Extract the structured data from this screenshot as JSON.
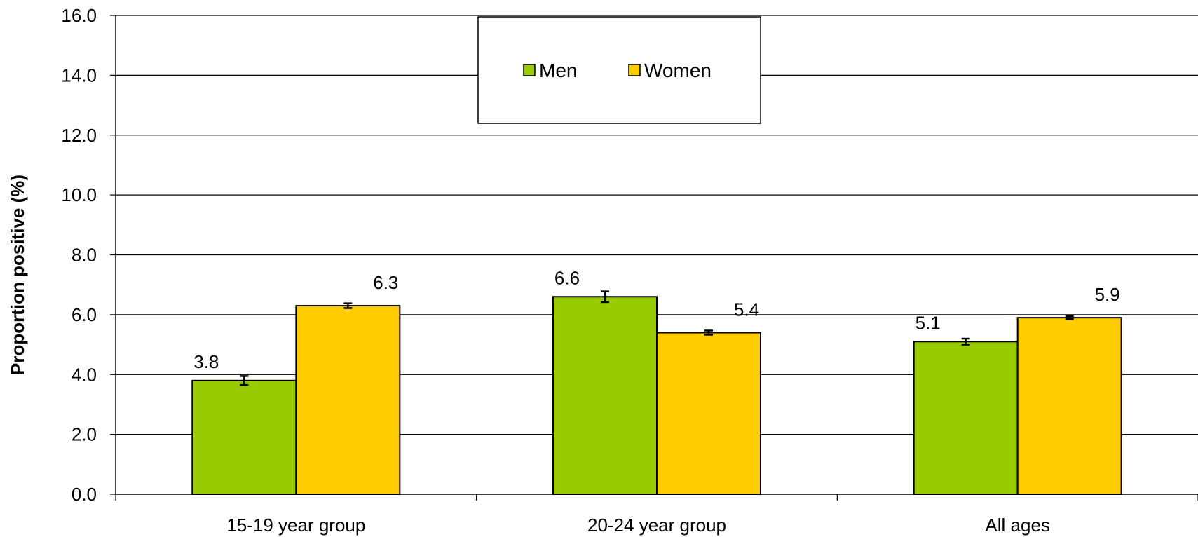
{
  "chart_data": {
    "type": "bar",
    "categories": [
      "15-19 year group",
      "20-24 year group",
      "All ages"
    ],
    "series": [
      {
        "name": "Men",
        "color": "#99cc00",
        "values": [
          3.8,
          6.6,
          5.1
        ],
        "error": [
          0.15,
          0.18,
          0.1
        ]
      },
      {
        "name": "Women",
        "color": "#ffcc00",
        "values": [
          6.3,
          5.4,
          5.9
        ],
        "error": [
          0.08,
          0.07,
          0.05
        ]
      }
    ],
    "value_labels": [
      [
        "3.8",
        "6.6",
        "5.1"
      ],
      [
        "6.3",
        "5.4",
        "5.9"
      ]
    ],
    "xlabel": "",
    "ylabel": "Proportion positive (%)",
    "ylim": [
      0,
      16
    ],
    "yticks": [
      "0.0",
      "2.0",
      "4.0",
      "6.0",
      "8.0",
      "10.0",
      "12.0",
      "14.0",
      "16.0"
    ],
    "grid": true,
    "legend_position": "top-center"
  }
}
